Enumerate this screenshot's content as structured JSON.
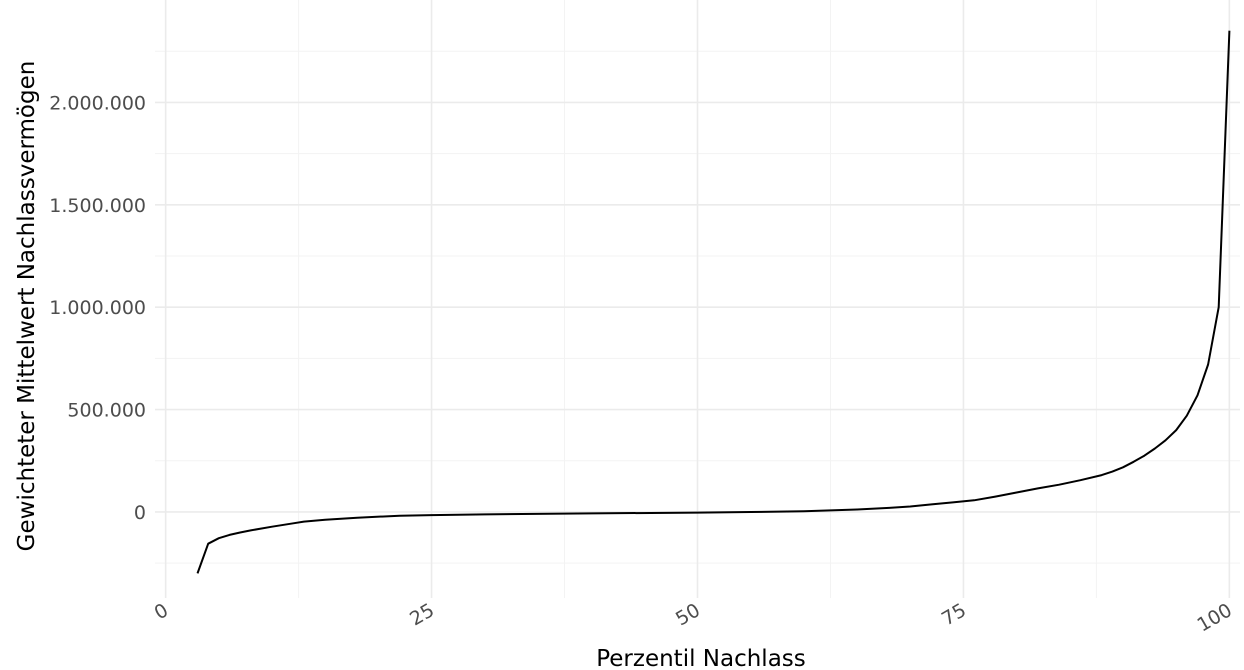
{
  "chart_data": {
    "type": "line",
    "title": "",
    "xlabel": "Perzentil Nachlass",
    "ylabel": "Gewichteter Mittelwert Nachlassvermögen",
    "xlim": [
      -1,
      101
    ],
    "ylim": [
      -420000,
      2500000
    ],
    "x_ticks": [
      0,
      25,
      50,
      75,
      100
    ],
    "x_tick_labels": [
      "0",
      "25",
      "50",
      "75",
      "100"
    ],
    "y_ticks": [
      0,
      500000,
      1000000,
      1500000,
      2000000
    ],
    "y_tick_labels": [
      "0",
      "500.000",
      "1.000.000",
      "1.500.000",
      "2.000.000"
    ],
    "grid": true,
    "legend": "none",
    "line_color": "#000000",
    "series": [
      {
        "x": [
          3,
          4,
          5,
          6,
          7,
          8,
          10,
          12,
          13,
          15,
          18,
          22,
          25,
          30,
          40,
          50,
          55,
          60,
          65,
          68,
          70,
          72,
          74,
          76,
          78,
          80,
          82,
          84,
          86,
          88,
          89,
          90,
          91,
          92,
          93,
          94,
          95,
          96,
          97,
          98,
          99,
          100
        ],
        "values": [
          -300000,
          -155000,
          -128000,
          -112000,
          -100000,
          -90000,
          -72000,
          -55000,
          -47000,
          -38000,
          -28000,
          -18000,
          -15000,
          -12000,
          -7000,
          -3000,
          0,
          4000,
          12000,
          20000,
          27000,
          37000,
          47000,
          57000,
          75000,
          95000,
          115000,
          133000,
          155000,
          180000,
          197000,
          218000,
          245000,
          275000,
          310000,
          350000,
          400000,
          470000,
          570000,
          720000,
          1000000,
          2350000
        ]
      }
    ]
  }
}
